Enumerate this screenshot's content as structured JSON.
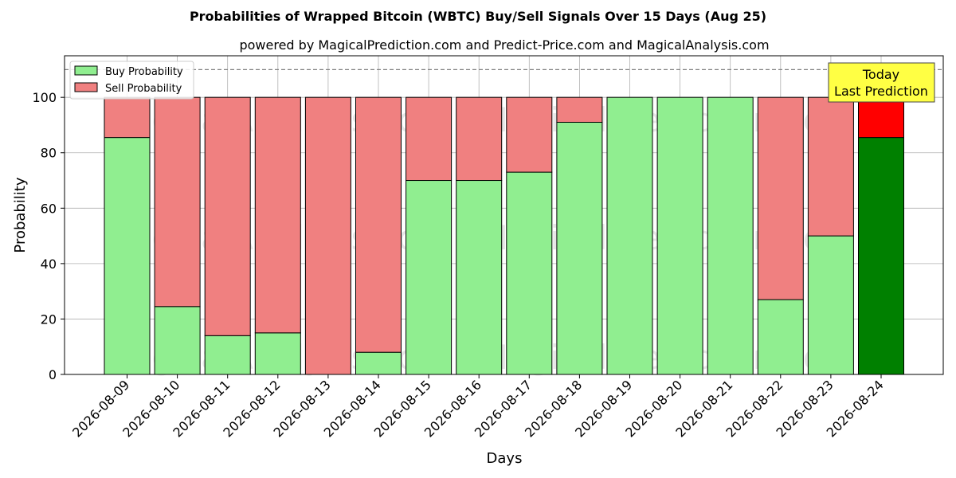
{
  "chart_data": {
    "type": "bar",
    "stacked": true,
    "title": "Probabilities of Wrapped Bitcoin (WBTC) Buy/Sell Signals Over 15 Days (Aug 25)",
    "subtitle": "powered by MagicalPrediction.com and Predict-Price.com and MagicalAnalysis.com",
    "xlabel": "Days",
    "ylabel": "Probability",
    "ylim": [
      0,
      115
    ],
    "yticks": [
      0,
      20,
      40,
      60,
      80,
      100
    ],
    "reference_line": 110,
    "grid": true,
    "legend_position": "top-left",
    "categories": [
      "2026-08-09",
      "2026-08-10",
      "2026-08-11",
      "2026-08-12",
      "2026-08-13",
      "2026-08-14",
      "2026-08-15",
      "2026-08-16",
      "2026-08-17",
      "2026-08-18",
      "2026-08-19",
      "2026-08-20",
      "2026-08-21",
      "2026-08-22",
      "2026-08-23",
      "2026-08-24"
    ],
    "series": [
      {
        "name": "Buy Probability",
        "color": "#90ee90",
        "highlight_color": "#008000",
        "values": [
          85.5,
          24.5,
          14,
          15,
          0,
          8,
          70,
          70,
          73,
          91,
          100,
          100,
          100,
          27,
          50,
          85.5
        ]
      },
      {
        "name": "Sell Probability",
        "color": "#f08080",
        "highlight_color": "#ff0000",
        "values": [
          14.5,
          75.5,
          86,
          85,
          100,
          92,
          30,
          30,
          27,
          9,
          0,
          0,
          0,
          73,
          50,
          14.5
        ]
      }
    ],
    "highlight_index": 15,
    "annotation": {
      "line1": "Today",
      "line2": "Last Prediction",
      "color": "#ffff44"
    },
    "watermarks": [
      "MagicalAnalysis.com",
      "MagicalPrediction.com"
    ]
  }
}
